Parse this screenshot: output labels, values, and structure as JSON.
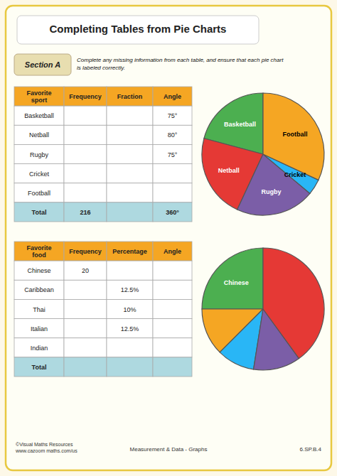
{
  "title": "Completing Tables from Pie Charts",
  "section_label": "Section A",
  "section_text": "Complete any missing information from each table, and ensure that each pie chart\nis labeled correctly.",
  "footer_left": "©Visual Maths Resources\nwww.cazoom maths.com/us",
  "footer_center": "Measurement & Data - Graphs",
  "footer_right": "6.SP.B.4",
  "chart_data": [
    {
      "type": "table",
      "header": [
        "Favorite\nsport",
        "Frequency",
        "Fraction",
        "Angle"
      ],
      "rows": [
        [
          "Basketball",
          null,
          null,
          "75°"
        ],
        [
          "Netball",
          null,
          null,
          "80°"
        ],
        [
          "Rugby",
          null,
          null,
          "75°"
        ],
        [
          "Cricket",
          null,
          null,
          null
        ],
        [
          "Football",
          null,
          null,
          null
        ]
      ],
      "total_row": [
        "Total",
        "216",
        null,
        "360°"
      ]
    },
    {
      "type": "pie",
      "categories": [
        "Basketball",
        "Netball",
        "Rugby",
        "Cricket",
        "Football"
      ],
      "values": [
        75,
        80,
        75,
        15,
        115
      ],
      "colors": [
        "#4CAF50",
        "#E53935",
        "#7B5EA7",
        "#29B6F6",
        "#F5A623"
      ]
    },
    {
      "type": "table",
      "header": [
        "Favorite\nfood",
        "Frequency",
        "Percentage",
        "Angle"
      ],
      "rows": [
        [
          "Chinese",
          "20",
          null,
          null
        ],
        [
          "Caribbean",
          null,
          "12.5%",
          null
        ],
        [
          "Thai",
          null,
          "10%",
          null
        ],
        [
          "Italian",
          null,
          "12.5%",
          null
        ],
        [
          "Indian",
          null,
          null,
          null
        ]
      ],
      "total_row": [
        "Total",
        null,
        null,
        null
      ]
    },
    {
      "type": "pie",
      "categories": [
        "Chinese",
        null,
        null,
        null,
        null
      ],
      "values": [
        90,
        45,
        36,
        45,
        144
      ],
      "colors": [
        "#4CAF50",
        "#F5A623",
        "#29B6F6",
        "#7B5EA7",
        "#E53935"
      ]
    }
  ]
}
